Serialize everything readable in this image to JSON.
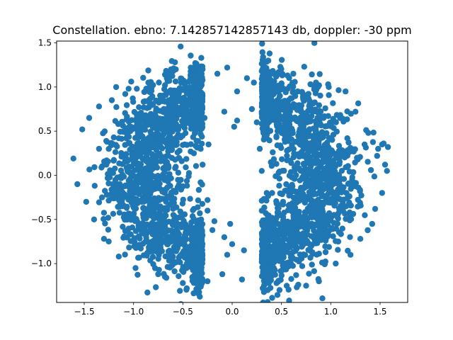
{
  "chart_data": {
    "type": "scatter",
    "title": "Constellation. ebno: 7.142857142857143 db, doppler: -30 ppm",
    "xlabel": "",
    "ylabel": "",
    "xlim": [
      -1.78,
      1.78
    ],
    "ylim": [
      -1.44,
      1.52
    ],
    "xticks": [
      {
        "value": -1.5,
        "label": "−1.5"
      },
      {
        "value": -1.0,
        "label": "−1.0"
      },
      {
        "value": -0.5,
        "label": "−0.5"
      },
      {
        "value": 0.0,
        "label": "0.0"
      },
      {
        "value": 0.5,
        "label": "0.5"
      },
      {
        "value": 1.0,
        "label": "1.0"
      },
      {
        "value": 1.5,
        "label": "1.5"
      }
    ],
    "yticks": [
      {
        "value": -1.0,
        "label": "−1.0"
      },
      {
        "value": -0.5,
        "label": "−0.5"
      },
      {
        "value": 0.0,
        "label": "0.0"
      },
      {
        "value": 0.5,
        "label": "0.5"
      },
      {
        "value": 1.0,
        "label": "1.0"
      },
      {
        "value": 1.5,
        "label": "1.5"
      }
    ],
    "grid": false,
    "series": [
      {
        "color": "#1f77b4",
        "dense_regions": [
          {
            "shape": "crescent",
            "side": "left",
            "x_range": [
              -1.35,
              -0.35
            ],
            "y_range": [
              -1.05,
              1.1
            ]
          },
          {
            "shape": "crescent",
            "side": "right",
            "x_range": [
              0.35,
              1.35
            ],
            "y_range": [
              -1.05,
              1.1
            ]
          }
        ],
        "points": [
          [
            -1.61,
            0.19
          ],
          [
            -1.57,
            -0.1
          ],
          [
            -1.52,
            0.52
          ],
          [
            -1.45,
            0.65
          ],
          [
            -1.48,
            -0.3
          ],
          [
            -1.4,
            -0.5
          ],
          [
            -1.35,
            0.78
          ],
          [
            -1.3,
            -0.72
          ],
          [
            -1.22,
            0.85
          ],
          [
            -1.15,
            -0.92
          ],
          [
            -1.05,
            0.98
          ],
          [
            -0.98,
            -1.05
          ],
          [
            -0.85,
            1.05
          ],
          [
            -0.75,
            -1.12
          ],
          [
            -0.62,
            1.2
          ],
          [
            -0.5,
            -1.22
          ],
          [
            -0.58,
            1.28
          ],
          [
            -0.46,
            -1.28
          ],
          [
            -0.42,
            1.22
          ],
          [
            -0.3,
            1.2
          ],
          [
            -0.25,
            -1.2
          ],
          [
            -0.15,
            1.15
          ],
          [
            -0.1,
            -1.12
          ],
          [
            -0.05,
            1.22
          ],
          [
            0.05,
            0.95
          ],
          [
            0.1,
            -1.18
          ],
          [
            -0.05,
            -0.9
          ],
          [
            0.12,
            -0.85
          ],
          [
            -0.08,
            0.72
          ],
          [
            0.15,
            1.1
          ],
          [
            0.2,
            0.75
          ],
          [
            0.22,
            1.05
          ],
          [
            -0.28,
            0.65
          ],
          [
            -0.24,
            0.35
          ],
          [
            -0.3,
            0.12
          ],
          [
            -0.32,
            -0.08
          ],
          [
            -0.25,
            -0.28
          ],
          [
            -0.25,
            -0.4
          ],
          [
            -0.18,
            -0.52
          ],
          [
            -0.2,
            -0.62
          ],
          [
            -0.08,
            -0.7
          ],
          [
            0.0,
            -0.78
          ],
          [
            0.3,
            -0.4
          ],
          [
            0.35,
            -0.2
          ],
          [
            0.3,
            0.05
          ],
          [
            0.28,
            0.3
          ],
          [
            0.32,
            0.52
          ],
          [
            0.25,
            0.6
          ],
          [
            0.38,
            1.38
          ],
          [
            0.3,
            1.18
          ],
          [
            0.45,
            -1.22
          ],
          [
            0.48,
            -1.3
          ],
          [
            0.36,
            -1.3
          ],
          [
            0.5,
            1.15
          ],
          [
            0.62,
            1.15
          ],
          [
            0.75,
            -1.25
          ],
          [
            0.85,
            1.05
          ],
          [
            0.88,
            -1.2
          ],
          [
            0.98,
            1.0
          ],
          [
            1.05,
            -1.0
          ],
          [
            1.15,
            0.95
          ],
          [
            1.2,
            -0.9
          ],
          [
            1.25,
            0.72
          ],
          [
            1.3,
            -0.72
          ],
          [
            1.38,
            0.48
          ],
          [
            1.42,
            -0.55
          ],
          [
            1.48,
            0.3
          ],
          [
            1.55,
            0.12
          ],
          [
            1.57,
            0.05
          ],
          [
            1.52,
            -0.2
          ],
          [
            1.45,
            -0.38
          ],
          [
            1.52,
            0.35
          ],
          [
            1.58,
            0.32
          ],
          [
            1.47,
            0.22
          ],
          [
            -1.35,
            0.3
          ],
          [
            -1.32,
            -0.25
          ],
          [
            0.45,
            0.8
          ],
          [
            -0.45,
            0.85
          ],
          [
            -0.42,
            -0.85
          ],
          [
            0.42,
            -0.88
          ],
          [
            0.02,
            0.55
          ],
          [
            -0.02,
            -0.55
          ],
          [
            0.05,
            0.62
          ]
        ]
      }
    ]
  }
}
